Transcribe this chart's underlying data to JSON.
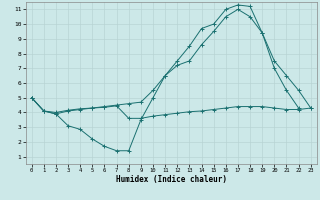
{
  "xlabel": "Humidex (Indice chaleur)",
  "bg_color": "#cce8e8",
  "grid_color": "#b8d4d4",
  "line_color": "#1a7070",
  "xlim": [
    -0.5,
    23.5
  ],
  "ylim": [
    0.5,
    11.5
  ],
  "xticks": [
    0,
    1,
    2,
    3,
    4,
    5,
    6,
    7,
    8,
    9,
    10,
    11,
    12,
    13,
    14,
    15,
    16,
    17,
    18,
    19,
    20,
    21,
    22,
    23
  ],
  "yticks": [
    1,
    2,
    3,
    4,
    5,
    6,
    7,
    8,
    9,
    10,
    11
  ],
  "line1_x": [
    0,
    1,
    2,
    3,
    4,
    5,
    6,
    7,
    8,
    9,
    10,
    11,
    12,
    13,
    14,
    15,
    16,
    17,
    18,
    19,
    20,
    21,
    22,
    23
  ],
  "line1_y": [
    5,
    4.1,
    3.9,
    4.1,
    4.2,
    4.3,
    4.35,
    4.45,
    3.6,
    3.6,
    3.75,
    3.85,
    3.95,
    4.05,
    4.1,
    4.2,
    4.3,
    4.4,
    4.4,
    4.4,
    4.3,
    4.2,
    4.2,
    4.3
  ],
  "line2_x": [
    0,
    1,
    2,
    3,
    4,
    5,
    6,
    7,
    8,
    9,
    10,
    11,
    12,
    13,
    14,
    15,
    16,
    17,
    18,
    19,
    20,
    21,
    22
  ],
  "line2_y": [
    5,
    4.1,
    3.9,
    3.1,
    2.85,
    2.2,
    1.7,
    1.4,
    1.4,
    3.5,
    5.0,
    6.5,
    7.5,
    8.5,
    9.7,
    10.0,
    11.0,
    11.3,
    11.2,
    9.4,
    7.0,
    5.5,
    4.3
  ],
  "line3_x": [
    0,
    1,
    2,
    3,
    4,
    5,
    6,
    7,
    8,
    9,
    10,
    11,
    12,
    13,
    14,
    15,
    16,
    17,
    18,
    19,
    20,
    21,
    22,
    23
  ],
  "line3_y": [
    5,
    4.1,
    4.0,
    4.15,
    4.25,
    4.3,
    4.4,
    4.5,
    4.6,
    4.7,
    5.5,
    6.5,
    7.2,
    7.5,
    8.6,
    9.5,
    10.5,
    11.0,
    10.5,
    9.4,
    7.5,
    6.5,
    5.5,
    4.3
  ]
}
